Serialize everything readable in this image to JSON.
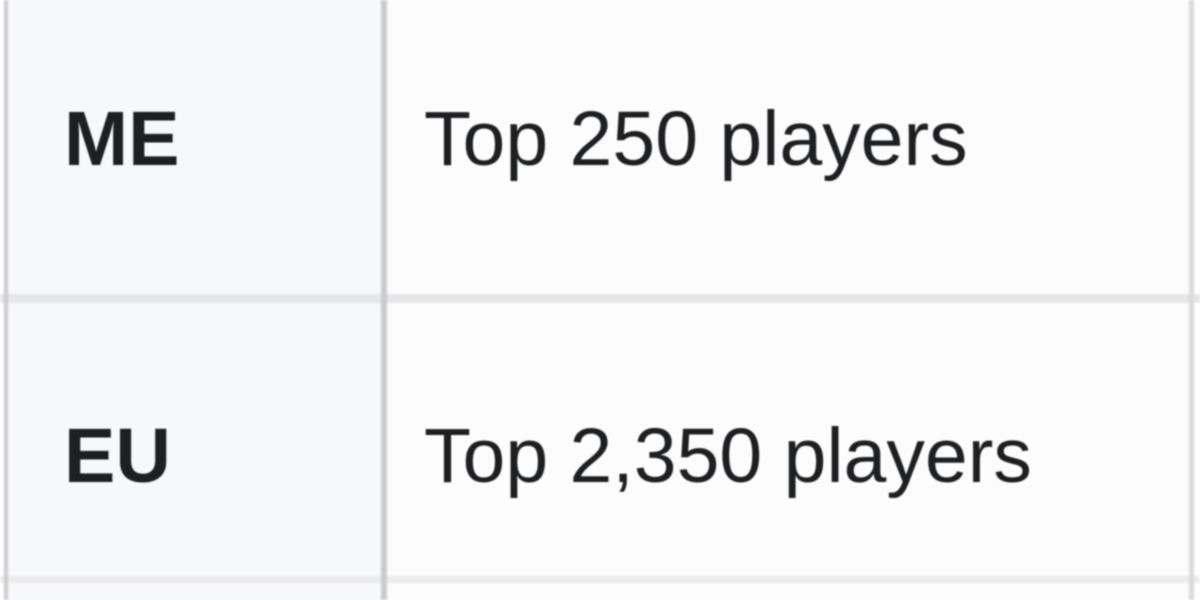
{
  "table": {
    "rows": [
      {
        "region": "ME",
        "value": "Top 250 players"
      },
      {
        "region": "EU",
        "value": "Top 2,350 players"
      }
    ]
  },
  "colors": {
    "header_cell_bg": "#f7f8f9",
    "value_cell_bg": "#fcfcfd",
    "border": "#c8cacd",
    "border_outer": "#cbcbcd",
    "border_right": "#d9dadb",
    "row_divider": "#e5e6e7",
    "row_divider_light": "#ebebec",
    "text": "#1d1f21"
  }
}
